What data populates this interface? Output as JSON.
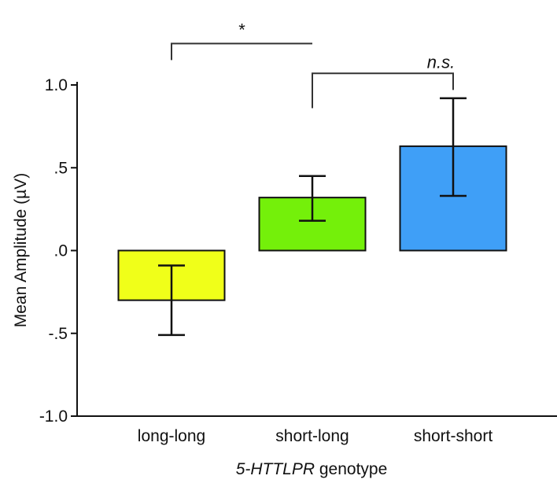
{
  "chart_data": {
    "type": "bar",
    "categories": [
      "long-long",
      "short-long",
      "short-short"
    ],
    "values": [
      -0.3,
      0.32,
      0.63
    ],
    "error_low": [
      -0.51,
      0.18,
      0.33
    ],
    "error_high": [
      -0.09,
      0.45,
      0.92
    ],
    "colors": [
      "#f0ff19",
      "#74f00a",
      "#3f9ff7"
    ],
    "ylabel": "Mean Amplitude (µV)",
    "xlabel_italic": "5-HTTLPR",
    "xlabel_rest": " genotype",
    "ylim": [
      -1.0,
      1.0
    ],
    "yticks": [
      1.0,
      0.5,
      0.0,
      -0.5,
      -1.0
    ],
    "ytick_labels": [
      "1.0",
      ".5",
      ".0",
      "-.5",
      "-1.0"
    ],
    "grid": false,
    "annotations": [
      {
        "label": "*",
        "italic": false,
        "from": 0,
        "to": 1,
        "level": 1.25,
        "from_drop": 1.15,
        "to_drop": 1.25
      },
      {
        "label": "n.s.",
        "italic": true,
        "from": 1,
        "to": 2,
        "level": 1.07,
        "from_drop": 0.86,
        "to_drop": 0.97
      }
    ]
  }
}
